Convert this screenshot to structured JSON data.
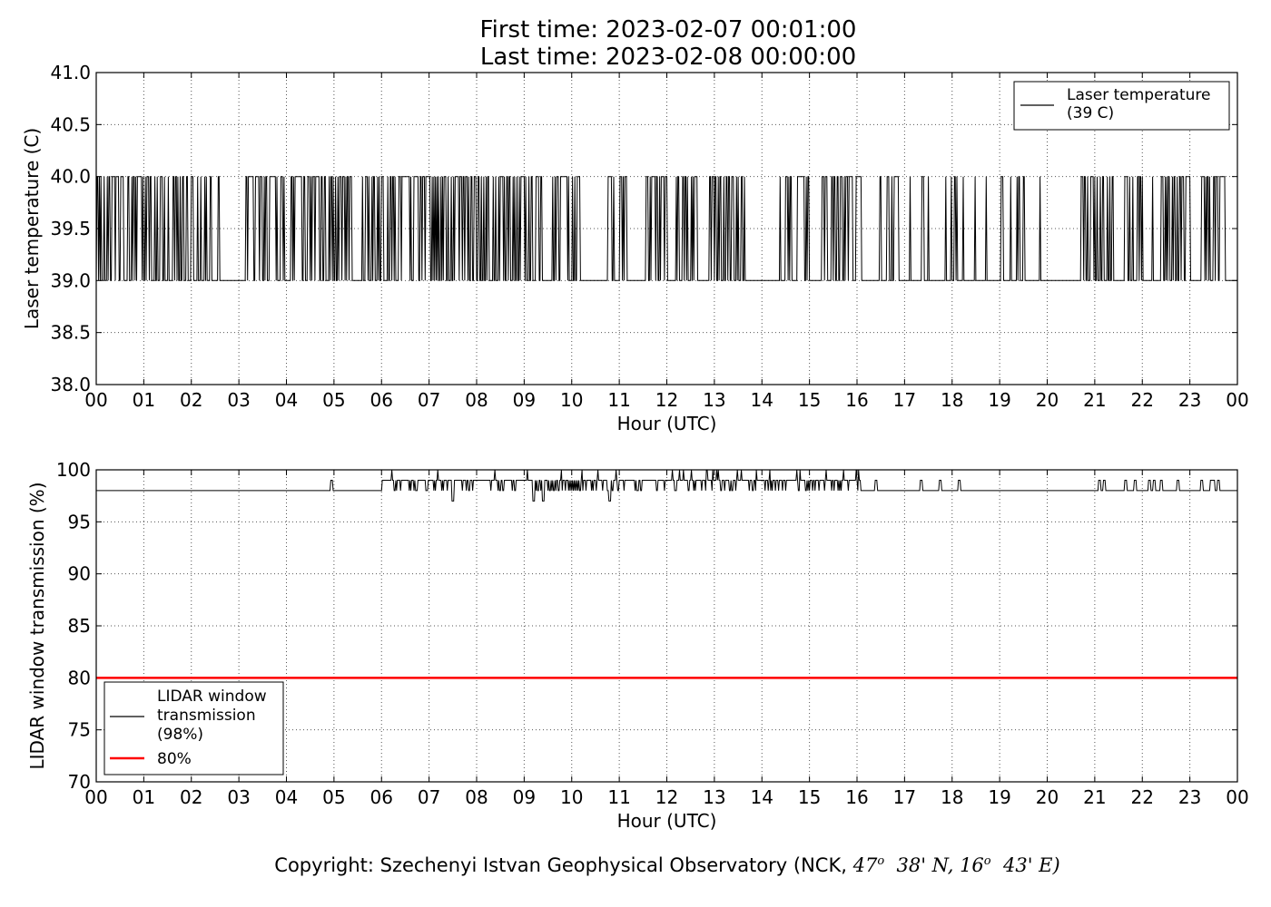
{
  "header": {
    "title_line1": "First time: 2023-02-07 00:01:00",
    "title_line2": "Last time: 2023-02-08 00:00:00"
  },
  "footer": {
    "copyright_prefix": "Copyright: Szechenyi Istvan Geophysical Observatory (NCK, ",
    "lat_deg": "47",
    "deg_symbol": "o",
    "lat_min": "38' N, ",
    "lon_deg": "16",
    "lon_min": "43' E)"
  },
  "colors": {
    "series_line": "#000000",
    "threshold_line": "#ff0000",
    "grid": "#555555"
  },
  "chart_data": [
    {
      "type": "line",
      "name": "laser-temperature-panel",
      "xlabel": "Hour (UTC)",
      "ylabel": "Laser temperature (C)",
      "x_ticks": [
        "00",
        "01",
        "02",
        "03",
        "04",
        "05",
        "06",
        "07",
        "08",
        "09",
        "10",
        "11",
        "12",
        "13",
        "14",
        "15",
        "16",
        "17",
        "18",
        "19",
        "20",
        "21",
        "22",
        "23",
        "00"
      ],
      "xlim": [
        0,
        24
      ],
      "ylim": [
        38.0,
        41.0
      ],
      "y_ticks": [
        "38.0",
        "38.5",
        "39.0",
        "39.5",
        "40.0",
        "40.5",
        "41.0"
      ],
      "grid": true,
      "legend_position": "top-right",
      "series": [
        {
          "name": "Laser temperature\n(39 C)",
          "legend_line1": "Laser temperature",
          "legend_line2": "(39 C)",
          "color": "#000000",
          "sampling": "1-minute samples alternating between 39.0 and 40.0",
          "levels": [
            39.0,
            40.0
          ],
          "baseline": 39.0,
          "dense_toggle_periods_hours": [
            [
              0.0,
              2.3
            ],
            [
              3.2,
              4.0
            ],
            [
              4.1,
              5.4
            ],
            [
              5.6,
              6.7
            ],
            [
              6.8,
              9.4
            ],
            [
              9.6,
              10.2
            ],
            [
              10.8,
              11.2
            ],
            [
              11.5,
              12.0
            ],
            [
              12.2,
              12.6
            ],
            [
              12.9,
              13.6
            ],
            [
              14.5,
              15.0
            ],
            [
              15.5,
              16.1
            ],
            [
              20.7,
              21.4
            ],
            [
              21.6,
              22.0
            ],
            [
              22.4,
              23.0
            ],
            [
              23.2,
              23.7
            ]
          ],
          "sparse_periods_hours": [
            [
              2.3,
              3.2
            ],
            [
              5.4,
              5.6
            ],
            [
              6.7,
              6.8
            ],
            [
              9.4,
              9.6
            ],
            [
              10.2,
              10.8
            ],
            [
              11.2,
              11.5
            ],
            [
              12.0,
              12.2
            ],
            [
              12.6,
              12.9
            ],
            [
              13.6,
              14.5
            ],
            [
              15.0,
              15.5
            ],
            [
              16.1,
              20.7
            ],
            [
              21.4,
              21.6
            ],
            [
              22.0,
              22.4
            ],
            [
              23.0,
              23.2
            ]
          ],
          "constant_periods_hours": [
            [
              23.75,
              24.0
            ]
          ]
        }
      ]
    },
    {
      "type": "line",
      "name": "lidar-window-transmission-panel",
      "xlabel": "Hour (UTC)",
      "ylabel": "LIDAR window transmission (%)",
      "x_ticks": [
        "00",
        "01",
        "02",
        "03",
        "04",
        "05",
        "06",
        "07",
        "08",
        "09",
        "10",
        "11",
        "12",
        "13",
        "14",
        "15",
        "16",
        "17",
        "18",
        "19",
        "20",
        "21",
        "22",
        "23",
        "00"
      ],
      "xlim": [
        0,
        24
      ],
      "ylim": [
        70,
        100
      ],
      "y_ticks": [
        "70",
        "75",
        "80",
        "85",
        "90",
        "95",
        "100"
      ],
      "grid": true,
      "legend_position": "bottom-left",
      "series": [
        {
          "name": "LIDAR window\ntransmission\n(98%)",
          "legend_line1": "LIDAR window",
          "legend_line2": "transmission",
          "legend_line3": "(98%)",
          "color": "#000000",
          "baseline": 98,
          "active_period_hours": [
            6.0,
            16.1
          ],
          "active_levels": [
            98,
            99,
            100
          ],
          "dips": [
            [
              7.5,
              97
            ],
            [
              9.2,
              97
            ],
            [
              9.4,
              97
            ],
            [
              10.8,
              97
            ]
          ],
          "spikes_hours": [
            4.95,
            16.4,
            17.35,
            17.75,
            18.15,
            21.1,
            21.2,
            21.65,
            21.85,
            22.15,
            22.25,
            22.4,
            22.75,
            23.25,
            23.45,
            23.5,
            23.6
          ],
          "spike_level": 99
        },
        {
          "name": "80%",
          "color": "#ff0000",
          "constant_value": 80,
          "x": [
            0,
            24
          ],
          "y": [
            80,
            80
          ]
        }
      ]
    }
  ]
}
